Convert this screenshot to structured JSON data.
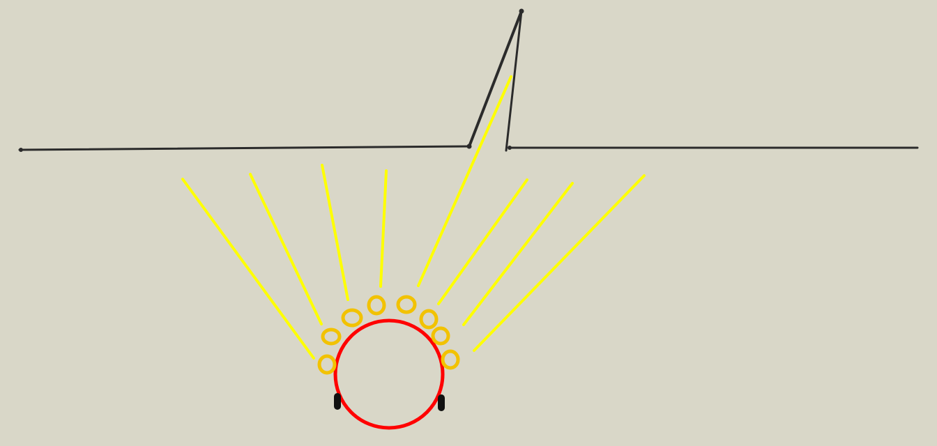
{
  "canvas": {
    "background": "#d9d7c8"
  },
  "colors": {
    "ground_line": "#2b2b2b",
    "ray": "#ffff00",
    "emitter": "#f2c200",
    "sphere": "#ff0000",
    "foot": "#111111"
  },
  "icons": {
    "sphere": "red-circle-icon",
    "emitters": "yellow-ring-icon",
    "rays": "yellow-line-icon",
    "feet": "black-foot-icon"
  }
}
